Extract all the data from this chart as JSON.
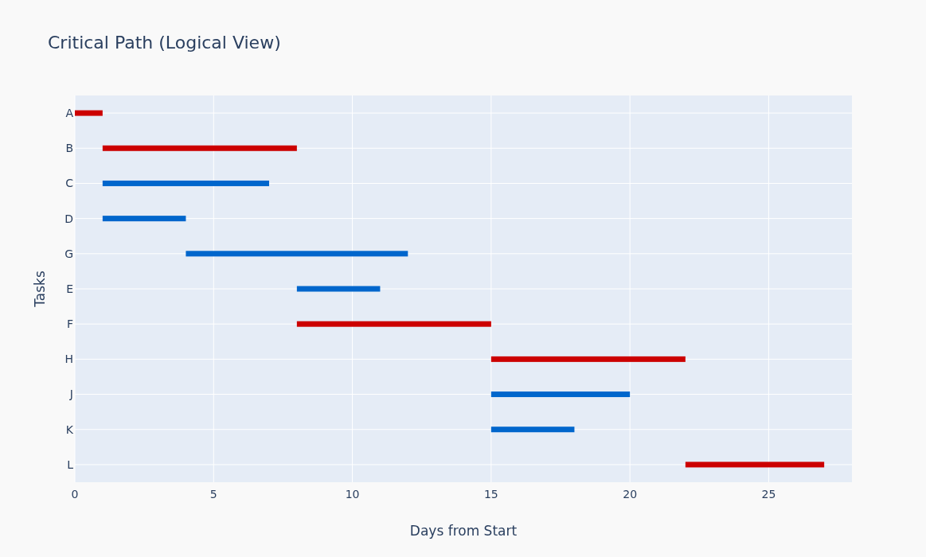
{
  "chart_data": {
    "type": "bar",
    "orientation": "horizontal",
    "title": "Critical Path (Logical View)",
    "xlabel": "Days from Start",
    "ylabel": "Tasks",
    "categories": [
      "A",
      "B",
      "C",
      "D",
      "G",
      "E",
      "F",
      "H",
      "J",
      "K",
      "L"
    ],
    "base": [
      0,
      1,
      1,
      1,
      4,
      8,
      8,
      15,
      15,
      15,
      22
    ],
    "values": [
      1,
      7,
      6,
      3,
      8,
      3,
      7,
      7,
      5,
      3,
      5
    ],
    "colors": [
      "#cc0000",
      "#cc0000",
      "#0066cc",
      "#0066cc",
      "#0066cc",
      "#0066cc",
      "#cc0000",
      "#cc0000",
      "#0066cc",
      "#0066cc",
      "#cc0000"
    ],
    "xlim": [
      0,
      28
    ],
    "xticks": [
      0,
      5,
      10,
      15,
      20,
      25
    ],
    "grid": true
  }
}
